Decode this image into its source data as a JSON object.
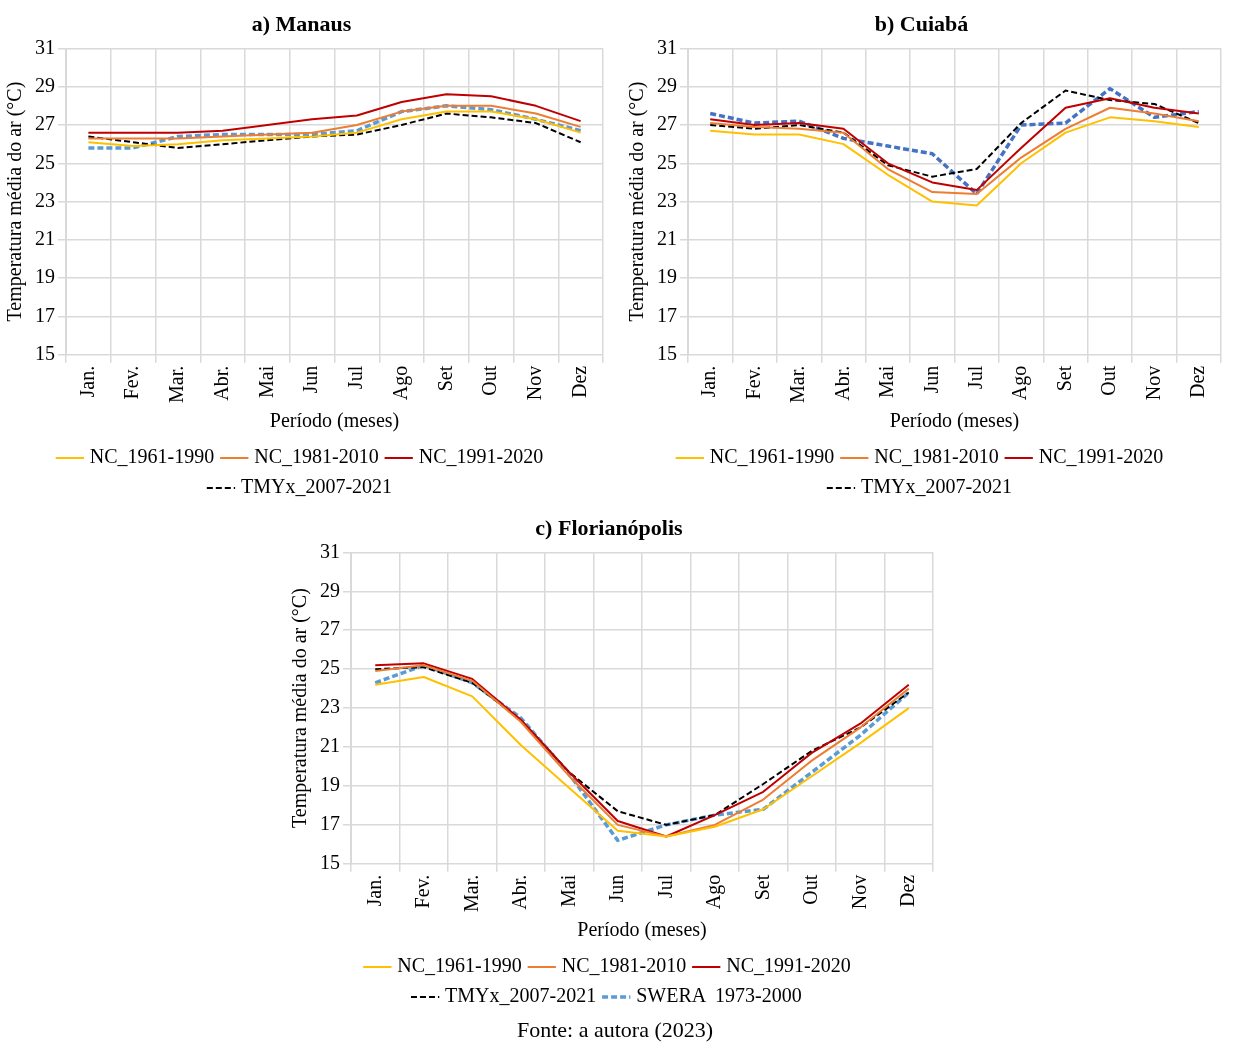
{
  "chart_data": [
    {
      "type": "line",
      "title": "a) Manaus",
      "xlabel": "Período (meses)",
      "ylabel": "Temperatura média do ar (°C)",
      "categories": [
        "Jan.",
        "Fev.",
        "Mar.",
        "Abr.",
        "Mai",
        "Jun",
        "Jul",
        "Ago",
        "Set",
        "Out",
        "Nov",
        "Dez"
      ],
      "ylim": [
        15,
        31
      ],
      "yticks": [
        15,
        17,
        19,
        21,
        23,
        25,
        27,
        29,
        31
      ],
      "grid": true,
      "legend": "bottom",
      "series": [
        {
          "name": "NC_1961-1990",
          "color": "#ffc000",
          "line_style": "solid",
          "values": [
            26.1,
            25.9,
            26.0,
            26.2,
            26.3,
            26.4,
            26.6,
            27.3,
            27.7,
            27.7,
            27.3,
            26.6
          ]
        },
        {
          "name": "NC_1981-2010",
          "color": "#ed7d31",
          "line_style": "solid",
          "values": [
            26.3,
            26.3,
            26.3,
            26.4,
            26.5,
            26.6,
            27.0,
            27.7,
            28.0,
            28.0,
            27.6,
            26.9
          ]
        },
        {
          "name": "NC_1991-2020",
          "color": "#c00000",
          "line_style": "solid",
          "values": [
            26.6,
            26.6,
            26.6,
            26.7,
            27.0,
            27.3,
            27.5,
            28.2,
            28.6,
            28.5,
            28.0,
            27.2
          ]
        },
        {
          "name": "TMYx_2007-2021",
          "color": "#000000",
          "line_style": "dashed",
          "values": [
            26.4,
            26.1,
            25.8,
            26.0,
            26.2,
            26.4,
            26.5,
            27.0,
            27.6,
            27.4,
            27.1,
            26.1
          ]
        },
        {
          "color": "#5b9bd5",
          "line_style": "dashed",
          "values": [
            25.8,
            25.8,
            26.4,
            26.5,
            26.5,
            26.5,
            26.7,
            27.7,
            28.0,
            27.8,
            27.3,
            26.7
          ]
        }
      ]
    },
    {
      "type": "line",
      "title": "b) Cuiabá",
      "xlabel": "Período (meses)",
      "ylabel": "Temperatura média do ar (°C)",
      "categories": [
        "Jan.",
        "Fev.",
        "Mar.",
        "Abr.",
        "Mai",
        "Jun",
        "Jul",
        "Ago",
        "Set",
        "Out",
        "Nov",
        "Dez"
      ],
      "ylim": [
        15,
        31
      ],
      "yticks": [
        15,
        17,
        19,
        21,
        23,
        25,
        27,
        29,
        31
      ],
      "grid": true,
      "legend": "bottom",
      "series": [
        {
          "name": "NC_1961-1990",
          "color": "#ffc000",
          "line_style": "solid",
          "values": [
            26.7,
            26.5,
            26.5,
            26.0,
            24.4,
            23.0,
            22.8,
            25.0,
            26.6,
            27.4,
            27.2,
            26.9
          ]
        },
        {
          "name": "NC_1981-2010",
          "color": "#ed7d31",
          "line_style": "solid",
          "values": [
            27.1,
            26.9,
            26.8,
            26.6,
            24.7,
            23.5,
            23.4,
            25.3,
            26.8,
            27.9,
            27.6,
            27.2
          ]
        },
        {
          "name": "NC_1991-2020",
          "color": "#c00000",
          "line_style": "solid",
          "values": [
            27.3,
            27.0,
            27.1,
            26.8,
            25.0,
            24.0,
            23.6,
            25.8,
            27.9,
            28.4,
            27.9,
            27.6
          ]
        },
        {
          "name": "TMYx_2007-2021",
          "color": "#000000",
          "line_style": "dashed",
          "values": [
            27.0,
            26.8,
            27.0,
            26.6,
            24.9,
            24.3,
            24.7,
            27.1,
            28.8,
            28.3,
            28.1,
            27.1
          ]
        },
        {
          "color": "#4472c4",
          "line_style": "dashed",
          "values": [
            27.6,
            27.1,
            27.2,
            26.3,
            25.9,
            25.5,
            23.4,
            27.0,
            27.1,
            28.9,
            27.4,
            27.7
          ]
        }
      ]
    },
    {
      "type": "line",
      "title": "c) Florianópolis",
      "xlabel": "Período (meses)",
      "ylabel": "Temperatura média do ar (°C)",
      "categories": [
        "Jan.",
        "Fev.",
        "Mar.",
        "Abr.",
        "Mai",
        "Jun",
        "Jul",
        "Ago",
        "Set",
        "Out",
        "Nov",
        "Dez"
      ],
      "ylim": [
        15,
        31
      ],
      "yticks": [
        15,
        17,
        19,
        21,
        23,
        25,
        27,
        29,
        31
      ],
      "grid": true,
      "legend": "bottom",
      "annotations": [
        "Fonte: a autora (2023)"
      ],
      "series": [
        {
          "name": "NC_1961-1990",
          "color": "#ffc000",
          "line_style": "solid",
          "values": [
            24.2,
            24.6,
            23.6,
            21.1,
            18.9,
            16.7,
            16.4,
            16.9,
            17.8,
            19.5,
            21.2,
            23.0
          ]
        },
        {
          "name": "NC_1981-2010",
          "color": "#ed7d31",
          "line_style": "solid",
          "values": [
            24.9,
            25.2,
            24.4,
            22.3,
            19.5,
            17.0,
            16.4,
            17.0,
            18.3,
            20.3,
            22.0,
            24.0
          ]
        },
        {
          "name": "NC_1991-2020",
          "color": "#c00000",
          "line_style": "solid",
          "values": [
            25.2,
            25.3,
            24.5,
            22.4,
            19.7,
            17.2,
            16.4,
            17.5,
            18.7,
            20.7,
            22.2,
            24.2
          ]
        },
        {
          "name": "TMYx_2007-2021",
          "color": "#000000",
          "line_style": "dashed",
          "values": [
            25.0,
            25.1,
            24.3,
            22.4,
            19.7,
            17.7,
            17.0,
            17.5,
            19.1,
            20.8,
            22.0,
            23.8
          ]
        },
        {
          "name": "SWERA  1973-2000",
          "color": "#5b9bd5",
          "line_style": "dashed",
          "values": [
            24.3,
            25.2,
            24.3,
            22.5,
            19.6,
            16.2,
            17.0,
            17.5,
            17.8,
            19.7,
            21.6,
            23.8
          ]
        }
      ]
    }
  ]
}
